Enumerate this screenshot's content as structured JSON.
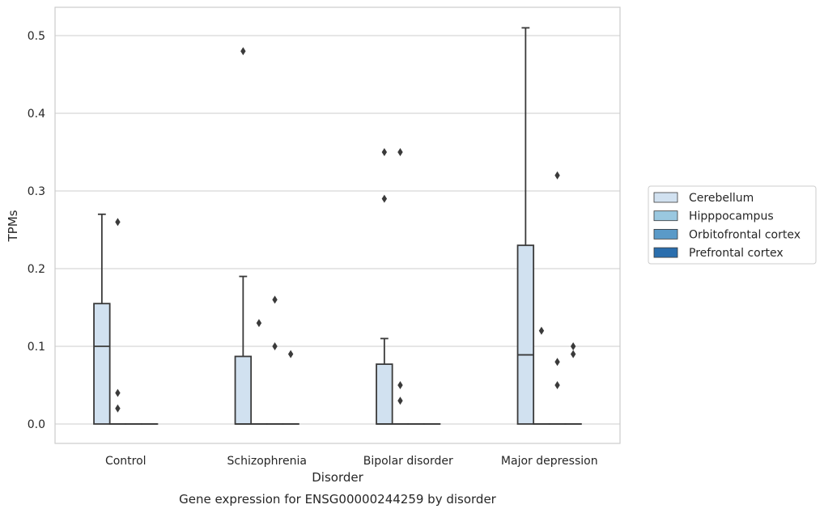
{
  "caption": "Gene expression for ENSG00000244259 by disorder",
  "chart_data": {
    "type": "box",
    "title": "",
    "xlabel": "Disorder",
    "ylabel": "TPMs",
    "ylim": [
      -0.025,
      0.537
    ],
    "yticks": [
      0.0,
      0.1,
      0.2,
      0.3,
      0.4,
      0.5
    ],
    "ytick_labels": [
      "0.0",
      "0.1",
      "0.2",
      "0.3",
      "0.4",
      "0.5"
    ],
    "grid": true,
    "legend_position": "right",
    "categories": [
      "Control",
      "Schizophrenia",
      "Bipolar disorder",
      "Major depression"
    ],
    "series": [
      {
        "name": "Cerebellum",
        "color": "#d1e1f0",
        "boxes": [
          {
            "min": 0.0,
            "q1": 0.0,
            "median": 0.1,
            "q3": 0.155,
            "max": 0.27,
            "outliers": []
          },
          {
            "min": 0.0,
            "q1": 0.0,
            "median": 0.0,
            "q3": 0.087,
            "max": 0.19,
            "outliers": [
              0.48
            ]
          },
          {
            "min": 0.0,
            "q1": 0.0,
            "median": 0.0,
            "q3": 0.077,
            "max": 0.11,
            "outliers": [
              0.29,
              0.35
            ]
          },
          {
            "min": 0.0,
            "q1": 0.0,
            "median": 0.089,
            "q3": 0.23,
            "max": 0.51,
            "outliers": []
          }
        ]
      },
      {
        "name": "Hipppocampus",
        "color": "#9ac8e0",
        "boxes": [
          {
            "min": 0.0,
            "q1": 0.0,
            "median": 0.0,
            "q3": 0.0,
            "max": 0.0,
            "outliers": [
              0.02,
              0.04,
              0.26
            ]
          },
          {
            "min": 0.0,
            "q1": 0.0,
            "median": 0.0,
            "q3": 0.0,
            "max": 0.0,
            "outliers": [
              0.13
            ]
          },
          {
            "min": 0.0,
            "q1": 0.0,
            "median": 0.0,
            "q3": 0.0,
            "max": 0.0,
            "outliers": [
              0.03,
              0.05,
              0.35
            ]
          },
          {
            "min": 0.0,
            "q1": 0.0,
            "median": 0.0,
            "q3": 0.0,
            "max": 0.0,
            "outliers": [
              0.12
            ]
          }
        ]
      },
      {
        "name": "Orbitofrontal cortex",
        "color": "#5a9ac8",
        "boxes": [
          {
            "min": 0.0,
            "q1": 0.0,
            "median": 0.0,
            "q3": 0.0,
            "max": 0.0,
            "outliers": []
          },
          {
            "min": 0.0,
            "q1": 0.0,
            "median": 0.0,
            "q3": 0.0,
            "max": 0.0,
            "outliers": [
              0.1,
              0.16
            ]
          },
          {
            "min": 0.0,
            "q1": 0.0,
            "median": 0.0,
            "q3": 0.0,
            "max": 0.0,
            "outliers": []
          },
          {
            "min": 0.0,
            "q1": 0.0,
            "median": 0.0,
            "q3": 0.0,
            "max": 0.0,
            "outliers": [
              0.05,
              0.08,
              0.32
            ]
          }
        ]
      },
      {
        "name": "Prefrontal cortex",
        "color": "#2a6ead",
        "boxes": [
          {
            "min": 0.0,
            "q1": 0.0,
            "median": 0.0,
            "q3": 0.0,
            "max": 0.0,
            "outliers": []
          },
          {
            "min": 0.0,
            "q1": 0.0,
            "median": 0.0,
            "q3": 0.0,
            "max": 0.0,
            "outliers": [
              0.09
            ]
          },
          {
            "min": 0.0,
            "q1": 0.0,
            "median": 0.0,
            "q3": 0.0,
            "max": 0.0,
            "outliers": []
          },
          {
            "min": 0.0,
            "q1": 0.0,
            "median": 0.0,
            "q3": 0.0,
            "max": 0.0,
            "outliers": [
              0.09,
              0.1
            ]
          }
        ]
      }
    ]
  }
}
